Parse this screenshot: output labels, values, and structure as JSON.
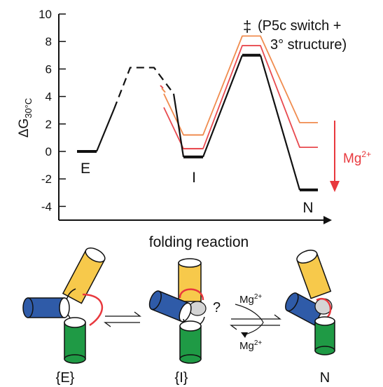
{
  "chart_data": {
    "type": "line",
    "ylabel_main": "ΔG",
    "ylabel_sub": "30°C",
    "xlabel": "folding reaction",
    "ylim": [
      -5,
      10
    ],
    "yticks": [
      "10",
      "8",
      "6",
      "4",
      "2",
      "0",
      "-2",
      "-4"
    ],
    "ytick_values": [
      10,
      8,
      6,
      4,
      2,
      0,
      -2,
      -4
    ],
    "state_labels": {
      "E": "E",
      "I": "I",
      "N": "N"
    },
    "ts_annotation": {
      "dagger": "‡",
      "line1": "(P5c switch +",
      "line2": "3° structure)"
    },
    "mg_label": {
      "base": "Mg",
      "sup": "2+"
    },
    "series": [
      {
        "color": "#111111",
        "levels": {
          "E": 0,
          "TS1": 6.1,
          "I": -0.4,
          "TS2": 7.0,
          "N": -2.8
        }
      },
      {
        "color": "#e84a4f",
        "levels": {
          "I": 0.2,
          "TS2": 7.7,
          "N": 0.3
        }
      },
      {
        "color": "#f08c4f",
        "levels": {
          "I": 1.2,
          "TS2": 8.4,
          "N": 2.1
        }
      }
    ]
  },
  "schematic": {
    "labels": {
      "E": "{E}",
      "I": "{I}",
      "N": "N"
    },
    "question": "?",
    "mg_top": {
      "base": "Mg",
      "sup": "2+"
    },
    "mg_bottom": {
      "base": "Mg",
      "sup": "2+"
    },
    "colors": {
      "yellow": "#f7c94b",
      "blue": "#2f5ba8",
      "green": "#1f9a45",
      "red": "#e8383d",
      "gray": "#d4d4d4"
    }
  }
}
